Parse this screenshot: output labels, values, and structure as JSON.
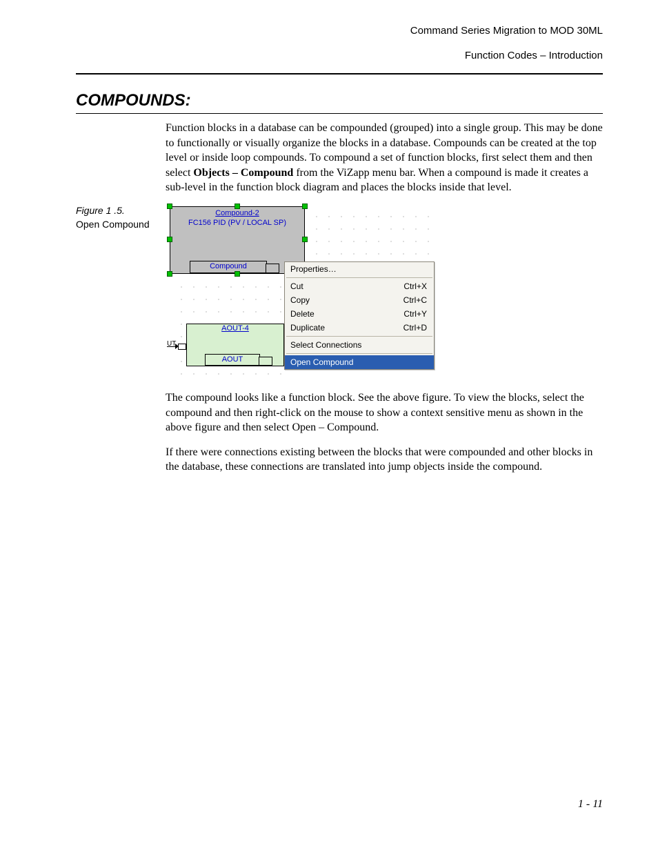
{
  "header": {
    "line1": "Command Series Migration to MOD 30ML",
    "line2": "Function Codes – Introduction"
  },
  "section_title": "COMPOUNDS:",
  "para1_pre": "Function blocks in a database can be compounded (grouped) into a single group. This may be done to functionally or visually organize the blocks in a database. Compounds can be created at the top level or inside loop compounds.  To compound a set of function blocks, first select them and then select ",
  "para1_bold": "Objects – Compound",
  "para1_post": " from the ViZapp menu bar. When a compound is made it creates a sub-level in the function block diagram and places the blocks inside that level.",
  "figure": {
    "number": "Figure 1 .5.",
    "caption": "Open Compound",
    "compound": {
      "title": "Compound-2",
      "subtitle": "FC156 PID (PV / LOCAL SP)",
      "footer": "Compound",
      "selection_handle_color": "#00c000"
    },
    "aout": {
      "title": "AOUT-4",
      "footer": "AOUT",
      "bg_color": "#d8f0d0"
    },
    "ut_label": "UT",
    "context_menu": {
      "bg_color": "#f4f3ee",
      "border_color": "#8a867a",
      "highlight_bg": "#2a5db0",
      "highlight_fg": "#ffffff",
      "items": [
        {
          "label": "Properties…",
          "shortcut": ""
        },
        {
          "sep": true
        },
        {
          "label": "Cut",
          "shortcut": "Ctrl+X"
        },
        {
          "label": "Copy",
          "shortcut": "Ctrl+C"
        },
        {
          "label": "Delete",
          "shortcut": "Ctrl+Y"
        },
        {
          "label": "Duplicate",
          "shortcut": "Ctrl+D"
        },
        {
          "sep": true
        },
        {
          "label": "Select Connections",
          "shortcut": ""
        },
        {
          "sep": true
        },
        {
          "label": "Open Compound",
          "shortcut": "",
          "selected": true
        }
      ]
    }
  },
  "para2": "The compound looks like a function block. See the above figure. To view the blocks, select the compound and then right-click on the mouse to show a context sensitive menu as shown in the above figure and then select Open – Compound.",
  "para3": "If there were connections existing between the blocks that were compounded and other blocks in the database, these connections are translated into jump objects inside the compound.",
  "page_number": "1 - 11"
}
